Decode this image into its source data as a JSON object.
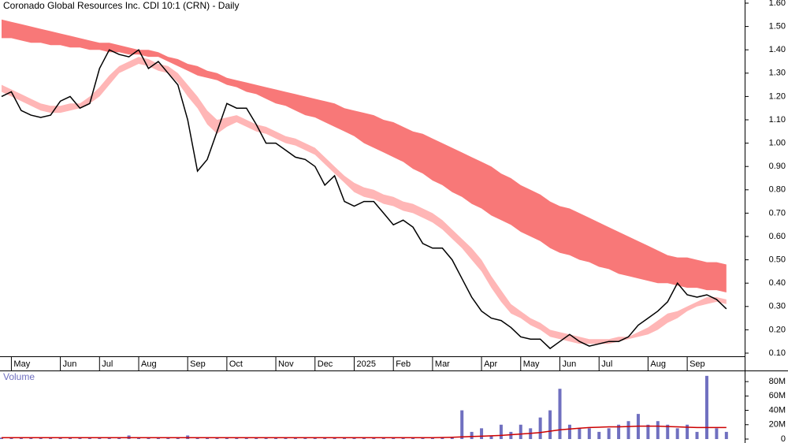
{
  "chart_data": [
    {
      "type": "stock",
      "title": "Coronado Global Resources Inc. CDI 10:1 (CRN) - Daily",
      "categories": [
        null,
        "May",
        null,
        null,
        null,
        null,
        "Jun",
        null,
        null,
        null,
        "Jul",
        null,
        null,
        null,
        "Aug",
        null,
        null,
        null,
        null,
        "Sep",
        null,
        null,
        null,
        "Oct",
        null,
        null,
        null,
        null,
        "Nov",
        null,
        null,
        null,
        "Dec",
        null,
        null,
        null,
        "2025",
        null,
        null,
        null,
        "Feb",
        null,
        null,
        null,
        "Mar",
        null,
        null,
        null,
        null,
        "Apr",
        null,
        null,
        null,
        "May",
        null,
        null,
        null,
        "Jun",
        null,
        null,
        null,
        "Jul",
        null,
        null,
        null,
        null,
        "Aug",
        null,
        null,
        null,
        "Sep",
        null,
        null,
        null,
        null
      ],
      "price": {
        "color": "#000000",
        "values": [
          1.2,
          1.22,
          1.14,
          1.12,
          1.11,
          1.12,
          1.18,
          1.2,
          1.15,
          1.17,
          1.32,
          1.4,
          1.38,
          1.37,
          1.4,
          1.32,
          1.35,
          1.3,
          1.25,
          1.1,
          0.88,
          0.93,
          1.05,
          1.17,
          1.15,
          1.15,
          1.08,
          1.0,
          1.0,
          0.97,
          0.94,
          0.93,
          0.9,
          0.82,
          0.86,
          0.75,
          0.73,
          0.75,
          0.75,
          0.7,
          0.65,
          0.67,
          0.64,
          0.57,
          0.55,
          0.55,
          0.5,
          0.42,
          0.34,
          0.28,
          0.25,
          0.24,
          0.21,
          0.17,
          0.16,
          0.16,
          0.12,
          0.15,
          0.18,
          0.15,
          0.13,
          0.14,
          0.15,
          0.15,
          0.17,
          0.22,
          0.25,
          0.28,
          0.32,
          0.4,
          0.35,
          0.34,
          0.35,
          0.33,
          0.29
        ]
      },
      "bands": [
        {
          "color": "#f87878",
          "upper": [
            1.53,
            1.52,
            1.51,
            1.5,
            1.49,
            1.48,
            1.47,
            1.46,
            1.45,
            1.44,
            1.43,
            1.43,
            1.42,
            1.41,
            1.4,
            1.4,
            1.39,
            1.37,
            1.36,
            1.34,
            1.33,
            1.31,
            1.3,
            1.28,
            1.27,
            1.26,
            1.25,
            1.24,
            1.23,
            1.22,
            1.21,
            1.2,
            1.19,
            1.18,
            1.17,
            1.15,
            1.14,
            1.13,
            1.12,
            1.1,
            1.09,
            1.07,
            1.05,
            1.04,
            1.02,
            1.0,
            0.98,
            0.96,
            0.94,
            0.92,
            0.9,
            0.87,
            0.85,
            0.82,
            0.8,
            0.78,
            0.75,
            0.73,
            0.72,
            0.7,
            0.68,
            0.66,
            0.64,
            0.62,
            0.6,
            0.58,
            0.56,
            0.54,
            0.52,
            0.51,
            0.51,
            0.5,
            0.49,
            0.49,
            0.48
          ],
          "lower": [
            1.45,
            1.45,
            1.44,
            1.43,
            1.43,
            1.42,
            1.42,
            1.41,
            1.41,
            1.4,
            1.4,
            1.39,
            1.39,
            1.38,
            1.38,
            1.37,
            1.37,
            1.35,
            1.33,
            1.31,
            1.29,
            1.28,
            1.27,
            1.25,
            1.24,
            1.22,
            1.21,
            1.19,
            1.17,
            1.16,
            1.14,
            1.12,
            1.11,
            1.09,
            1.07,
            1.05,
            1.03,
            1.0,
            0.98,
            0.96,
            0.94,
            0.92,
            0.89,
            0.87,
            0.84,
            0.82,
            0.79,
            0.77,
            0.74,
            0.72,
            0.69,
            0.67,
            0.65,
            0.62,
            0.6,
            0.58,
            0.55,
            0.53,
            0.52,
            0.5,
            0.49,
            0.47,
            0.46,
            0.44,
            0.43,
            0.42,
            0.41,
            0.4,
            0.4,
            0.39,
            0.38,
            0.38,
            0.37,
            0.37,
            0.36
          ]
        },
        {
          "color": "#ffb6b6",
          "upper": [
            1.25,
            1.23,
            1.21,
            1.19,
            1.17,
            1.16,
            1.16,
            1.17,
            1.17,
            1.2,
            1.24,
            1.29,
            1.33,
            1.35,
            1.37,
            1.36,
            1.34,
            1.33,
            1.3,
            1.25,
            1.2,
            1.14,
            1.1,
            1.11,
            1.12,
            1.1,
            1.08,
            1.07,
            1.05,
            1.03,
            1.02,
            1.0,
            0.98,
            0.94,
            0.9,
            0.86,
            0.83,
            0.81,
            0.8,
            0.78,
            0.77,
            0.75,
            0.74,
            0.72,
            0.7,
            0.67,
            0.63,
            0.59,
            0.55,
            0.5,
            0.43,
            0.37,
            0.31,
            0.28,
            0.25,
            0.23,
            0.2,
            0.19,
            0.18,
            0.17,
            0.16,
            0.16,
            0.16,
            0.17,
            0.17,
            0.19,
            0.21,
            0.24,
            0.27,
            0.28,
            0.3,
            0.32,
            0.34,
            0.34,
            0.33
          ],
          "lower": [
            1.22,
            1.2,
            1.18,
            1.16,
            1.14,
            1.13,
            1.13,
            1.14,
            1.15,
            1.17,
            1.2,
            1.25,
            1.3,
            1.32,
            1.34,
            1.33,
            1.31,
            1.3,
            1.26,
            1.2,
            1.15,
            1.08,
            1.04,
            1.07,
            1.09,
            1.07,
            1.05,
            1.04,
            1.02,
            1.0,
            0.99,
            0.97,
            0.95,
            0.91,
            0.87,
            0.83,
            0.79,
            0.77,
            0.76,
            0.74,
            0.73,
            0.71,
            0.7,
            0.68,
            0.66,
            0.63,
            0.59,
            0.55,
            0.5,
            0.45,
            0.38,
            0.32,
            0.27,
            0.25,
            0.22,
            0.2,
            0.17,
            0.16,
            0.15,
            0.14,
            0.14,
            0.14,
            0.14,
            0.15,
            0.16,
            0.17,
            0.18,
            0.2,
            0.23,
            0.25,
            0.28,
            0.3,
            0.31,
            0.32,
            0.31
          ]
        }
      ],
      "ylim": [
        0.0865,
        1.6135
      ],
      "yticks": [
        {
          "value": 0.1,
          "label": "0.10"
        },
        {
          "value": 0.2,
          "label": "0.20"
        },
        {
          "value": 0.3,
          "label": "0.30"
        },
        {
          "value": 0.4,
          "label": "0.40"
        },
        {
          "value": 0.5,
          "label": "0.50"
        },
        {
          "value": 0.6,
          "label": "0.60"
        },
        {
          "value": 0.7,
          "label": "0.70"
        },
        {
          "value": 0.8,
          "label": "0.80"
        },
        {
          "value": 0.9,
          "label": "0.90"
        },
        {
          "value": 1.0,
          "label": "1.00"
        },
        {
          "value": 1.1,
          "label": "1.10"
        },
        {
          "value": 1.2,
          "label": "1.20"
        },
        {
          "value": 1.3,
          "label": "1.30"
        },
        {
          "value": 1.4,
          "label": "1.40"
        },
        {
          "value": 1.5,
          "label": "1.50"
        },
        {
          "value": 1.6,
          "label": "1.60"
        }
      ]
    },
    {
      "type": "bar",
      "title": "Volume",
      "color": "#7070c0",
      "values": [
        2000000,
        1500000,
        2000000,
        1500000,
        2000000,
        1500000,
        2000000,
        2000000,
        1500000,
        2000000,
        2500000,
        2000000,
        2000000,
        5000000,
        2000000,
        2000000,
        1500000,
        2000000,
        2000000,
        5000000,
        2000000,
        1500000,
        2000000,
        2000000,
        1500000,
        1500000,
        2000000,
        1500000,
        1500000,
        2000000,
        1500000,
        1500000,
        2000000,
        1500000,
        1500000,
        1500000,
        1500000,
        1500000,
        1500000,
        1500000,
        1500000,
        1500000,
        2000000,
        2000000,
        2000000,
        2000000,
        3000000,
        40000000,
        10000000,
        15000000,
        5000000,
        20000000,
        10000000,
        20000000,
        15000000,
        30000000,
        40000000,
        70000000,
        20000000,
        15000000,
        15000000,
        10000000,
        15000000,
        20000000,
        25000000,
        35000000,
        20000000,
        25000000,
        20000000,
        15000000,
        20000000,
        10000000,
        88000000,
        15000000,
        10000000
      ],
      "average": {
        "color": "#cc0000",
        "values": [
          2000000,
          2000000,
          2000000,
          2000000,
          2000000,
          2000000,
          2000000,
          2000000,
          2000000,
          2000000,
          2000000,
          2000000,
          2000000,
          2000000,
          2000000,
          2000000,
          2000000,
          2000000,
          2000000,
          2000000,
          2000000,
          2000000,
          2000000,
          2000000,
          2000000,
          2000000,
          2000000,
          2000000,
          2000000,
          2000000,
          2000000,
          2000000,
          2000000,
          2000000,
          2000000,
          2000000,
          2000000,
          2000000,
          2000000,
          2000000,
          2000000,
          2000000,
          2000000,
          2000000,
          2000000,
          2200000,
          2500000,
          3000000,
          3500000,
          4000000,
          4500000,
          5000000,
          6000000,
          7000000,
          8000000,
          9000000,
          11000000,
          13000000,
          14000000,
          15000000,
          16000000,
          16500000,
          17000000,
          17000000,
          17500000,
          18000000,
          18000000,
          18000000,
          17500000,
          17000000,
          16500000,
          16000000,
          16000000,
          16000000,
          16000000
        ]
      },
      "ylim": [
        0,
        90000000
      ],
      "yticks": [
        0,
        {
          "value": 20000000,
          "label": "20M"
        },
        {
          "value": 40000000,
          "label": "40M"
        },
        {
          "value": 60000000,
          "label": "60M"
        },
        {
          "value": 80000000,
          "label": "80M"
        }
      ]
    }
  ]
}
